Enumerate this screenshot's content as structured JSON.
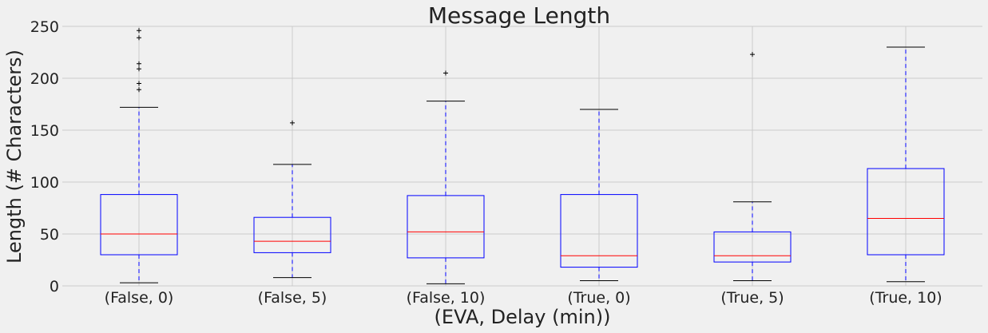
{
  "chart_data": {
    "type": "box",
    "title": "Message Length",
    "xlabel": "(EVA, Delay (min))",
    "ylabel": "Length (# Characters)",
    "ylim": [
      0,
      250
    ],
    "yticks": [
      0,
      50,
      100,
      150,
      200,
      250
    ],
    "grid": true,
    "categories": [
      "(False, 0)",
      "(False, 5)",
      "(False, 10)",
      "(True, 0)",
      "(True, 5)",
      "(True, 10)"
    ],
    "boxes": [
      {
        "whisker_low": 3,
        "q1": 30,
        "median": 50,
        "q3": 88,
        "whisker_high": 172,
        "outliers": [
          189,
          195,
          209,
          214,
          239,
          246
        ]
      },
      {
        "whisker_low": 8,
        "q1": 32,
        "median": 43,
        "q3": 66,
        "whisker_high": 117,
        "outliers": [
          157
        ]
      },
      {
        "whisker_low": 2,
        "q1": 27,
        "median": 52,
        "q3": 87,
        "whisker_high": 178,
        "outliers": [
          205
        ]
      },
      {
        "whisker_low": 5,
        "q1": 18,
        "median": 29,
        "q3": 88,
        "whisker_high": 170,
        "outliers": []
      },
      {
        "whisker_low": 5,
        "q1": 23,
        "median": 29,
        "q3": 52,
        "whisker_high": 81,
        "outliers": [
          223
        ]
      },
      {
        "whisker_low": 4,
        "q1": 30,
        "median": 65,
        "q3": 113,
        "whisker_high": 230,
        "outliers": []
      }
    ],
    "colors": {
      "box": "#0000ff",
      "median": "#ff0000",
      "whisker": "#0000ff",
      "cap": "#000000",
      "outlier": "#000000"
    }
  }
}
